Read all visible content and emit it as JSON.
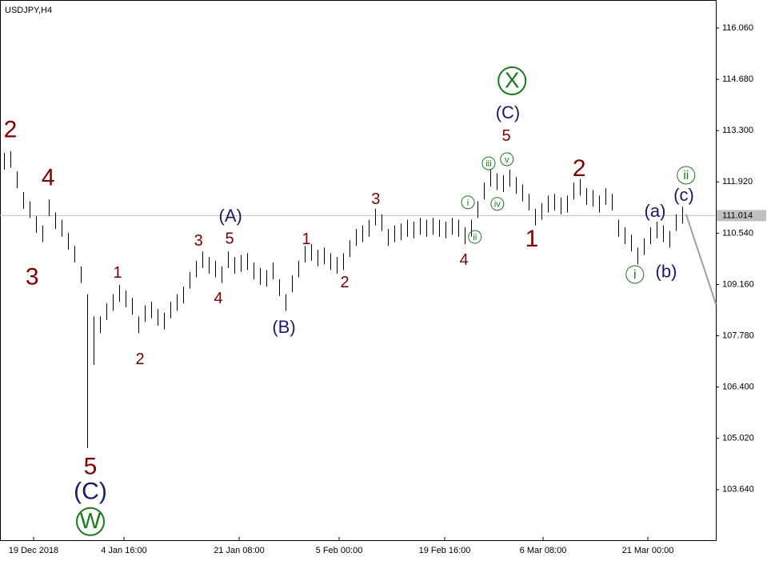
{
  "chart_data": {
    "type": "ohlc",
    "title": "USDJPY,H4",
    "color": "#000000",
    "high": [
      112.7,
      112.75,
      112.2,
      111.65,
      111.4,
      111.0,
      110.75,
      111.45,
      111.1,
      110.9,
      110.55,
      110.2,
      109.65,
      108.9,
      108.3,
      108.3,
      108.65,
      108.9,
      109.15,
      109.0,
      108.8,
      108.3,
      108.6,
      108.7,
      108.5,
      108.4,
      108.7,
      108.9,
      109.1,
      109.5,
      109.8,
      110.05,
      109.9,
      109.8,
      109.65,
      110.05,
      109.9,
      109.95,
      110.0,
      109.75,
      109.6,
      109.55,
      109.75,
      109.3,
      108.9,
      109.4,
      109.8,
      110.2,
      110.25,
      110.1,
      110.15,
      110.0,
      109.9,
      110.0,
      110.35,
      110.65,
      110.75,
      110.9,
      111.2,
      111.05,
      110.65,
      110.75,
      110.8,
      110.9,
      110.85,
      110.95,
      110.9,
      110.95,
      110.9,
      110.85,
      110.95,
      110.9,
      110.7,
      110.9,
      111.4,
      111.9,
      112.25,
      112.15,
      112.1,
      112.25,
      112.05,
      111.85,
      111.6,
      111.2,
      111.35,
      111.55,
      111.6,
      111.5,
      111.55,
      111.9,
      112.0,
      111.75,
      111.7,
      111.55,
      111.75,
      111.6,
      110.9,
      110.7,
      110.5,
      110.15,
      110.4,
      110.7,
      110.85,
      110.75,
      110.6,
      111.05,
      111.25
    ],
    "low": [
      112.25,
      112.3,
      111.75,
      111.2,
      110.95,
      110.55,
      110.3,
      111.0,
      110.65,
      110.45,
      110.1,
      109.75,
      109.2,
      104.76,
      107.0,
      107.85,
      108.2,
      108.45,
      108.7,
      108.55,
      108.35,
      107.85,
      108.15,
      108.25,
      108.05,
      107.95,
      108.25,
      108.45,
      108.65,
      109.05,
      109.35,
      109.6,
      109.45,
      109.35,
      109.2,
      109.6,
      109.45,
      109.5,
      109.55,
      109.3,
      109.15,
      109.1,
      109.3,
      108.85,
      108.45,
      108.95,
      109.35,
      109.75,
      109.8,
      109.65,
      109.7,
      109.55,
      109.45,
      109.55,
      109.9,
      110.2,
      110.3,
      110.45,
      110.75,
      110.6,
      110.2,
      110.3,
      110.35,
      110.45,
      110.4,
      110.5,
      110.45,
      110.5,
      110.45,
      110.4,
      110.5,
      110.45,
      110.25,
      110.45,
      110.95,
      111.45,
      111.8,
      111.7,
      111.65,
      111.8,
      111.6,
      111.4,
      111.15,
      110.75,
      110.9,
      111.1,
      111.15,
      111.05,
      111.1,
      111.45,
      111.55,
      111.3,
      111.25,
      111.1,
      111.3,
      111.15,
      110.45,
      110.25,
      110.05,
      109.7,
      109.95,
      110.25,
      110.4,
      110.3,
      110.15,
      110.6,
      110.8
    ],
    "xlim": [
      -0.625,
      111.25
    ],
    "xticks": [
      {
        "value": 4.625,
        "label": "19 Dec 2018"
      },
      {
        "value": 18.75,
        "label": "4 Jan 16:00"
      },
      {
        "value": 36.75,
        "label": "21 Jan 08:00"
      },
      {
        "value": 52.375,
        "label": "5 Feb 00:00"
      },
      {
        "value": 68.875,
        "label": "19 Feb 16:00"
      },
      {
        "value": 84.25,
        "label": "6 Mar 08:00"
      },
      {
        "value": 100.625,
        "label": "21 Mar 00:00"
      }
    ],
    "ylim": [
      102.28,
      116.75
    ],
    "yticks": [
      {
        "value": 116.06,
        "label": "116.060"
      },
      {
        "value": 114.68,
        "label": "114.680"
      },
      {
        "value": 113.3,
        "label": "113.300"
      },
      {
        "value": 111.92,
        "label": "111.920"
      },
      {
        "value": 110.54,
        "label": "110.540"
      },
      {
        "value": 109.16,
        "label": "109.160"
      },
      {
        "value": 107.78,
        "label": "107.780"
      },
      {
        "value": 106.4,
        "label": "106.400"
      },
      {
        "value": 105.02,
        "label": "105.020"
      },
      {
        "value": 103.64,
        "label": "103.640"
      }
    ],
    "price_line": {
      "value": 111.014,
      "label": "111.014",
      "color": "#c0c0c0"
    },
    "forecast": {
      "x": [
        106.6,
        111.25
      ],
      "values": [
        111.05,
        108.64
      ],
      "color": "#a0a0a0"
    },
    "annotations": [
      {
        "text": "2",
        "x": 1.0,
        "y": 113.33,
        "color": "#7f0000",
        "style": "large"
      },
      {
        "text": "4",
        "x": 6.9,
        "y": 112.04,
        "color": "#7f0000",
        "style": "large"
      },
      {
        "text": "3",
        "x": 4.4,
        "y": 109.37,
        "color": "#7f0000",
        "style": "large"
      },
      {
        "text": "5",
        "x": 13.5,
        "y": 104.27,
        "color": "#7f0000",
        "style": "large"
      },
      {
        "text": "(C)",
        "x": 13.5,
        "y": 103.6,
        "color": "#191970",
        "style": "large"
      },
      {
        "text": "W",
        "x": 13.5,
        "y": 102.78,
        "color": "#1a7a1a",
        "style": "circled-large"
      },
      {
        "text": "1",
        "x": 17.75,
        "y": 109.5,
        "color": "#7f0000",
        "style": "small"
      },
      {
        "text": "2",
        "x": 21.25,
        "y": 107.17,
        "color": "#7f0000",
        "style": "small"
      },
      {
        "text": "3",
        "x": 30.4,
        "y": 110.36,
        "color": "#7f0000",
        "style": "small"
      },
      {
        "text": "5",
        "x": 35.25,
        "y": 110.42,
        "color": "#7f0000",
        "style": "small"
      },
      {
        "text": "(A)",
        "x": 35.4,
        "y": 111.02,
        "color": "#191970",
        "style": "medium"
      },
      {
        "text": "4",
        "x": 33.5,
        "y": 108.81,
        "color": "#7f0000",
        "style": "small"
      },
      {
        "text": "1",
        "x": 47.25,
        "y": 110.4,
        "color": "#7f0000",
        "style": "small"
      },
      {
        "text": "(B)",
        "x": 43.75,
        "y": 108.03,
        "color": "#191970",
        "style": "medium"
      },
      {
        "text": "2",
        "x": 53.25,
        "y": 109.24,
        "color": "#7f0000",
        "style": "small"
      },
      {
        "text": "3",
        "x": 58.1,
        "y": 111.48,
        "color": "#7f0000",
        "style": "small"
      },
      {
        "text": "4",
        "x": 71.9,
        "y": 109.84,
        "color": "#7f0000",
        "style": "small"
      },
      {
        "text": "i",
        "x": 72.5,
        "y": 111.37,
        "color": "#1a7a1a",
        "style": "circled-small"
      },
      {
        "text": "ii",
        "x": 73.6,
        "y": 110.44,
        "color": "#1a7a1a",
        "style": "circled-small"
      },
      {
        "text": "iii",
        "x": 75.75,
        "y": 112.42,
        "color": "#1a7a1a",
        "style": "circled-small"
      },
      {
        "text": "iv",
        "x": 77.1,
        "y": 111.33,
        "color": "#1a7a1a",
        "style": "circled-small"
      },
      {
        "text": "v",
        "x": 78.6,
        "y": 112.53,
        "color": "#1a7a1a",
        "style": "circled-small"
      },
      {
        "text": "5",
        "x": 78.5,
        "y": 113.18,
        "color": "#7f0000",
        "style": "small"
      },
      {
        "text": "(C)",
        "x": 78.75,
        "y": 113.8,
        "color": "#191970",
        "style": "medium"
      },
      {
        "text": "X",
        "x": 79.4,
        "y": 114.64,
        "color": "#1a7a1a",
        "style": "circled-large"
      },
      {
        "text": "2",
        "x": 89.9,
        "y": 112.29,
        "color": "#7f0000",
        "style": "large"
      },
      {
        "text": "1",
        "x": 82.5,
        "y": 110.4,
        "color": "#7f0000",
        "style": "large"
      },
      {
        "text": "(a)",
        "x": 101.75,
        "y": 111.15,
        "color": "#191970",
        "style": "medium"
      },
      {
        "text": "(b)",
        "x": 103.5,
        "y": 109.52,
        "color": "#191970",
        "style": "medium"
      },
      {
        "text": "(c)",
        "x": 106.25,
        "y": 111.58,
        "color": "#191970",
        "style": "medium"
      },
      {
        "text": "ii",
        "x": 106.6,
        "y": 112.1,
        "color": "#1a7a1a",
        "style": "circled-medium"
      },
      {
        "text": "i",
        "x": 98.6,
        "y": 109.43,
        "color": "#1a7a1a",
        "style": "circled-medium"
      }
    ]
  }
}
